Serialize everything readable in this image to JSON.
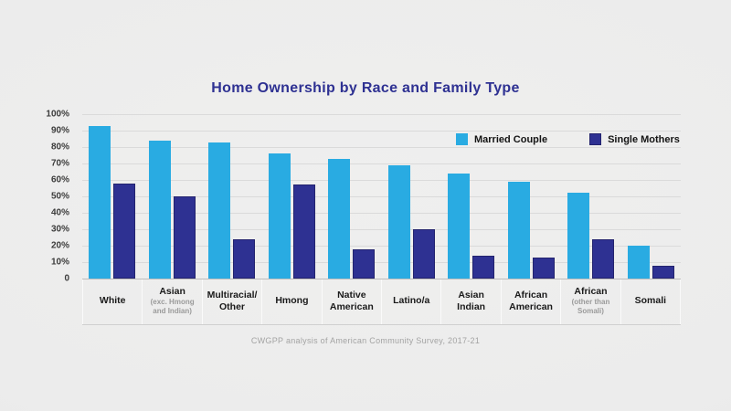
{
  "page": {
    "background": "#ececec",
    "accent_navy": "#2e3192",
    "accent_cyan": "#29abe2"
  },
  "chart_data": {
    "type": "bar",
    "title": "Home Ownership by Race and Family Type",
    "footer": "CWGPP analysis of American Community Survey, 2017-21",
    "ylim": [
      0,
      100
    ],
    "y_ticks": [
      "100%",
      "90%",
      "80%",
      "70%",
      "60%",
      "50%",
      "40%",
      "30%",
      "20%",
      "10%",
      "0"
    ],
    "grid": true,
    "legend_position": "top-right",
    "categories": [
      {
        "label": "White",
        "sublabel": ""
      },
      {
        "label": "Asian",
        "sublabel": "(exc. Hmong and Indian)"
      },
      {
        "label": "Multiracial/ Other",
        "sublabel": ""
      },
      {
        "label": "Hmong",
        "sublabel": ""
      },
      {
        "label": "Native American",
        "sublabel": ""
      },
      {
        "label": "Latino/a",
        "sublabel": ""
      },
      {
        "label": "Asian Indian",
        "sublabel": ""
      },
      {
        "label": "African American",
        "sublabel": ""
      },
      {
        "label": "African",
        "sublabel": "(other than Somali)"
      },
      {
        "label": "Somali",
        "sublabel": ""
      }
    ],
    "series": [
      {
        "name": "Married Couple",
        "color": "#29abe2",
        "values": [
          93,
          84,
          83,
          76,
          73,
          69,
          64,
          59,
          52,
          20
        ]
      },
      {
        "name": "Single Mothers",
        "color": "#2e3192",
        "values": [
          58,
          50,
          24,
          57,
          18,
          30,
          14,
          13,
          24,
          8
        ]
      }
    ]
  }
}
